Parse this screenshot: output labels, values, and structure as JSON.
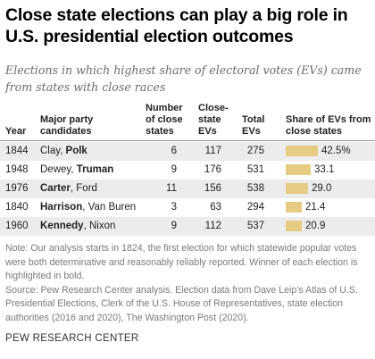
{
  "title": "Close state elections can play a big role in U.S. presidential election outcomes",
  "subtitle": "Elections in which highest share of electoral votes (EVs) came from states with close races",
  "headers": {
    "year": "Year",
    "candidates": "Major party candidates",
    "close_states": "Number of close states",
    "close_evs": "Close-state EVs",
    "total_evs": "Total EVs",
    "share": "Share of EVs from close states"
  },
  "rows": [
    {
      "year": "1844",
      "cand1": "Clay, ",
      "cand2": "Polk",
      "winner_pos": 2,
      "close_states": "6",
      "close_evs": "117",
      "total_evs": "275",
      "share_label": "42.5%"
    },
    {
      "year": "1948",
      "cand1": "Dewey, ",
      "cand2": "Truman",
      "winner_pos": 2,
      "close_states": "9",
      "close_evs": "176",
      "total_evs": "531",
      "share_label": "33.1"
    },
    {
      "year": "1976",
      "cand1": "Carter",
      "cand2": ", Ford",
      "winner_pos": 1,
      "close_states": "11",
      "close_evs": "156",
      "total_evs": "538",
      "share_label": "29.0"
    },
    {
      "year": "1840",
      "cand1": "Harrison",
      "cand2": ", Van Buren",
      "winner_pos": 1,
      "close_states": "3",
      "close_evs": "63",
      "total_evs": "294",
      "share_label": "21.4"
    },
    {
      "year": "1960",
      "cand1": "Kennedy",
      "cand2": ", Nixon",
      "winner_pos": 1,
      "close_states": "9",
      "close_evs": "112",
      "total_evs": "537",
      "share_label": "20.9"
    }
  ],
  "chart_data": {
    "type": "table",
    "columns": [
      "Year",
      "Major party candidates",
      "Number of close states",
      "Close-state EVs",
      "Total EVs",
      "Share of EVs from close states"
    ],
    "categories": [
      "1844",
      "1948",
      "1976",
      "1840",
      "1960"
    ],
    "values": [
      42.5,
      33.1,
      29.0,
      21.4,
      20.9
    ],
    "bar_color": "#e6cc82"
  },
  "note": "Note: Our analysis starts in 1824, the first election for which statewide popular votes were both determinative and reasonably reliably reported. Winner of each election is highlighted in bold.",
  "source": "Source: Pew Research Center analysis. Election data from Dave Leip’s Atlas of U.S. Presidential Elections, Clerk of the U.S. House of Representatives, state election authorities (2016 and 2020), The Washington Post (2020).",
  "footer": "PEW RESEARCH CENTER"
}
